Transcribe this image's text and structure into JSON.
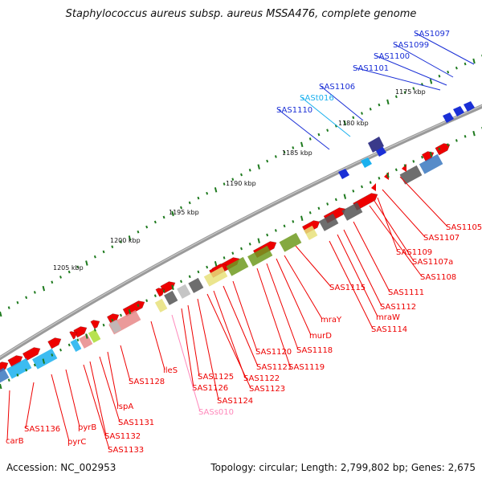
{
  "title": "Staphylococcus aureus subsp. aureus MSSA476, complete genome",
  "footer": {
    "accession": "Accession: NC_002953",
    "topology": "Topology: circular; Length: 2,799,802 bp; Genes: 2,675"
  },
  "colors": {
    "red": "#ee0000",
    "blue": "#1a2fd6",
    "cyan": "#1ab0ee",
    "pink": "#ff88bb",
    "olive": "#6e9a1f",
    "backbone": "#9a9a9a"
  },
  "ticks": [
    {
      "label": "1175 kbp"
    },
    {
      "label": "1180 kbp"
    },
    {
      "label": "1185 kbp"
    },
    {
      "label": "1190 kbp"
    },
    {
      "label": "1195 kbp"
    },
    {
      "label": "1200 kbp"
    },
    {
      "label": "1205 kbp"
    }
  ],
  "genes": [
    {
      "label": "SAS1097",
      "color": "blue"
    },
    {
      "label": "SAS1099",
      "color": "blue"
    },
    {
      "label": "SAS1100",
      "color": "blue"
    },
    {
      "label": "SAS1101",
      "color": "blue"
    },
    {
      "label": "SAS1106",
      "color": "blue"
    },
    {
      "label": "SASt016",
      "color": "cyan"
    },
    {
      "label": "SAS1110",
      "color": "blue"
    },
    {
      "label": "SAS1105",
      "color": "red"
    },
    {
      "label": "SAS1107",
      "color": "red"
    },
    {
      "label": "SAS1109",
      "color": "red"
    },
    {
      "label": "SAS1107a",
      "color": "red"
    },
    {
      "label": "SAS1108",
      "color": "red"
    },
    {
      "label": "SAS1111",
      "color": "red"
    },
    {
      "label": "SAS1112",
      "color": "red"
    },
    {
      "label": "mraW",
      "color": "red"
    },
    {
      "label": "SAS1114",
      "color": "red"
    },
    {
      "label": "SAS1115",
      "color": "red"
    },
    {
      "label": "mraY",
      "color": "red"
    },
    {
      "label": "murD",
      "color": "red"
    },
    {
      "label": "SAS1118",
      "color": "red"
    },
    {
      "label": "SAS1120",
      "color": "red"
    },
    {
      "label": "SAS1119",
      "color": "red"
    },
    {
      "label": "SAS1121",
      "color": "red"
    },
    {
      "label": "SAS1122",
      "color": "red"
    },
    {
      "label": "SAS1123",
      "color": "red"
    },
    {
      "label": "SAS1124",
      "color": "red"
    },
    {
      "label": "SAS1125",
      "color": "red"
    },
    {
      "label": "SAS1126",
      "color": "red"
    },
    {
      "label": "ileS",
      "color": "red"
    },
    {
      "label": "SASs010",
      "color": "pink"
    },
    {
      "label": "SAS1128",
      "color": "red"
    },
    {
      "label": "lspA",
      "color": "red"
    },
    {
      "label": "SAS1131",
      "color": "red"
    },
    {
      "label": "SAS1132",
      "color": "red"
    },
    {
      "label": "SAS1133",
      "color": "red"
    },
    {
      "label": "pyrB",
      "color": "red"
    },
    {
      "label": "pyrC",
      "color": "red"
    },
    {
      "label": "SAS1136",
      "color": "red"
    },
    {
      "label": "carB",
      "color": "red"
    }
  ]
}
